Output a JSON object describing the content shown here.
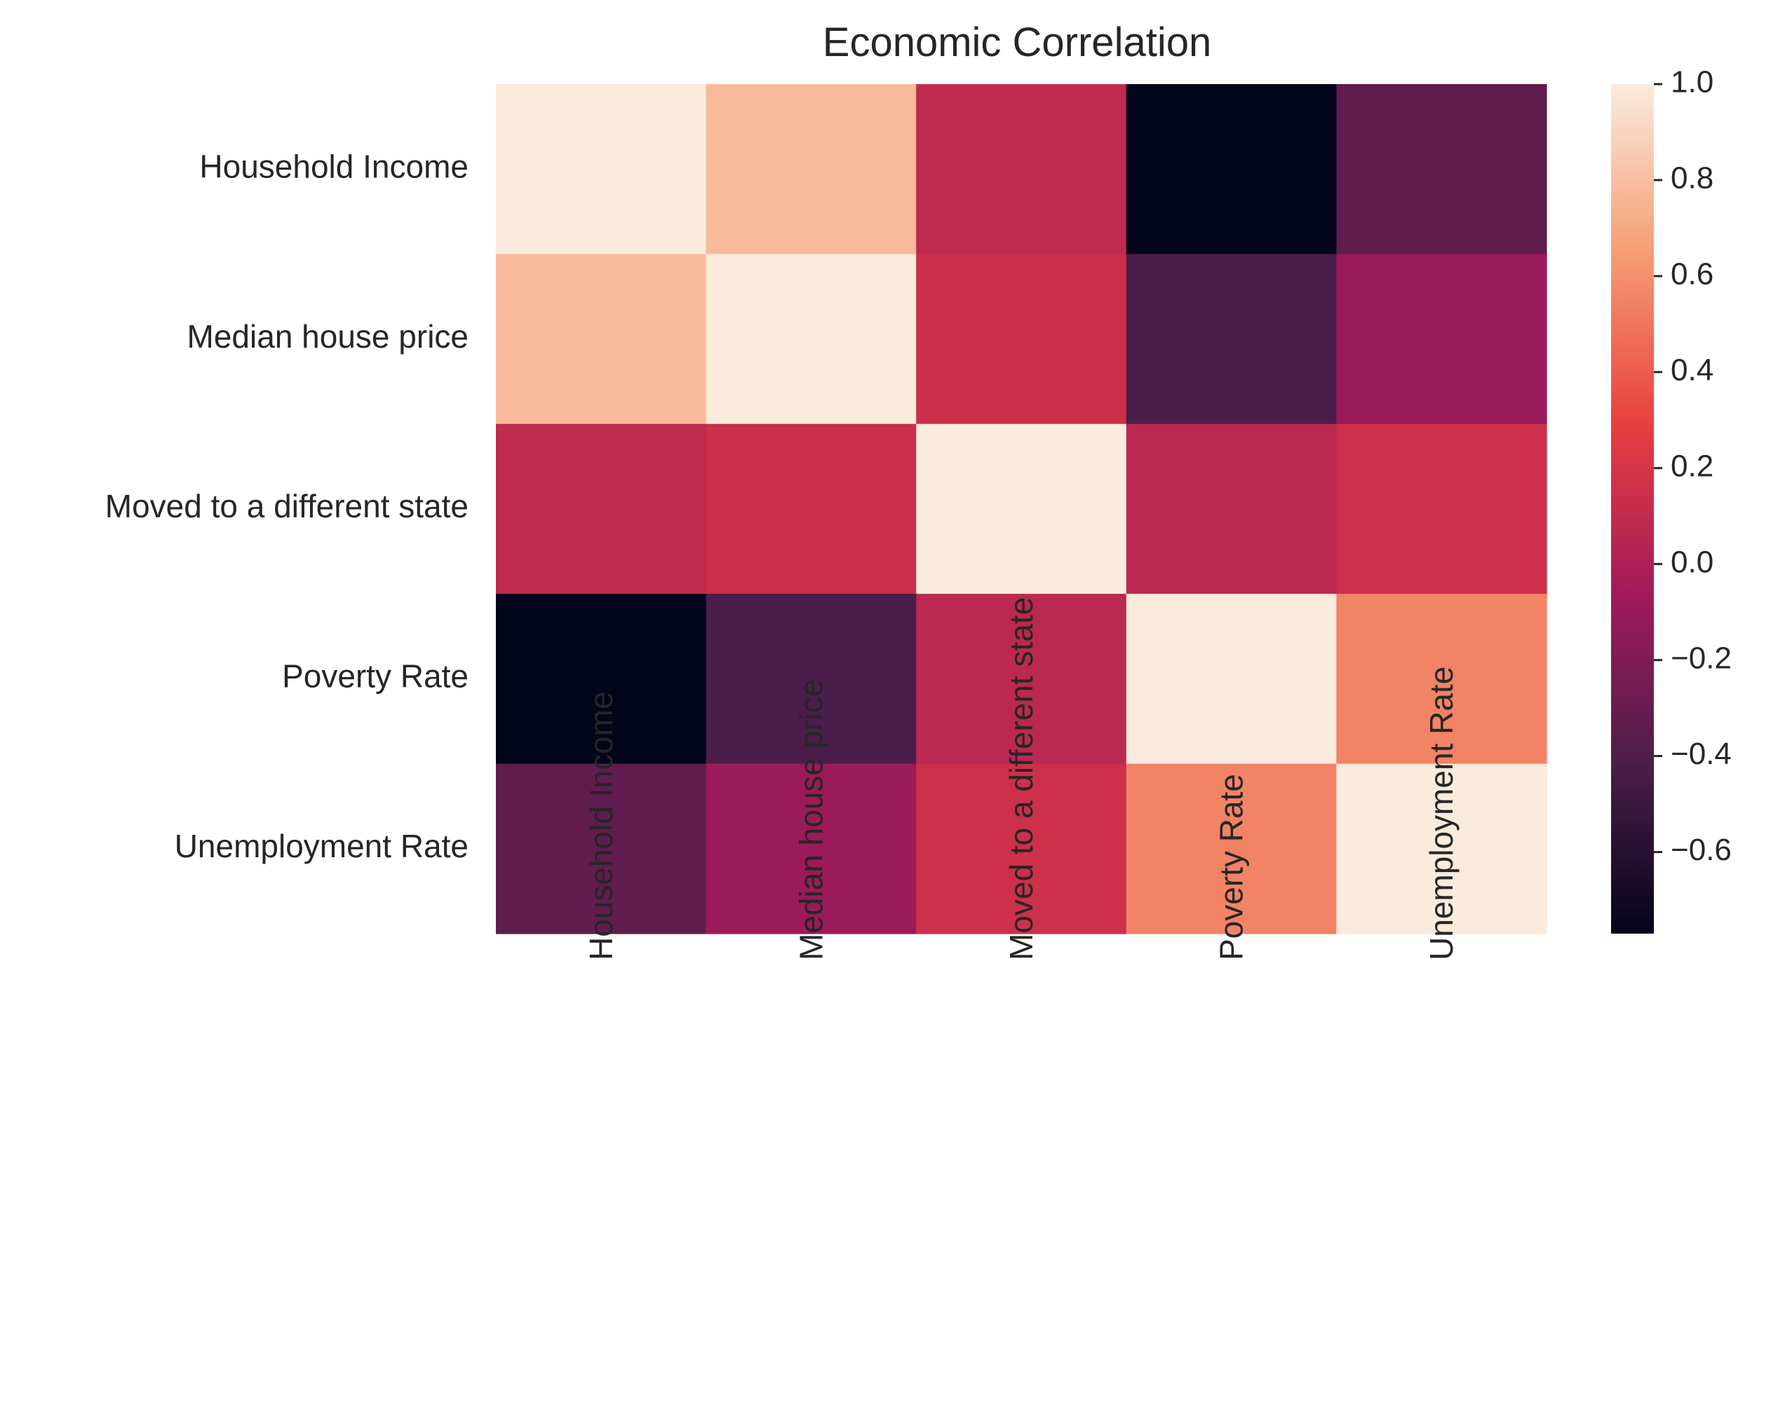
{
  "chart_data": {
    "type": "heatmap",
    "title": "Economic Correlation",
    "xlabel": "",
    "ylabel": "",
    "row_labels": [
      "Household Income",
      "Median house price",
      "Moved to a different state",
      "Poverty Rate",
      "Unemployment Rate"
    ],
    "col_labels": [
      "Household Income",
      "Median house price",
      "Moved to a different state",
      "Poverty Rate",
      "Unemployment Rate"
    ],
    "values": [
      [
        1.0,
        0.78,
        0.09,
        -0.77,
        -0.33
      ],
      [
        0.78,
        1.0,
        0.14,
        -0.42,
        -0.09
      ],
      [
        0.09,
        0.14,
        1.0,
        0.07,
        0.15
      ],
      [
        -0.77,
        -0.42,
        0.07,
        1.0,
        0.55
      ],
      [
        -0.33,
        -0.09,
        0.15,
        0.55,
        1.0
      ]
    ],
    "colorbar": {
      "min": -0.77,
      "max": 1.0,
      "ticks": [
        "1.0",
        "0.8",
        "0.6",
        "0.4",
        "0.2",
        "0.0",
        "−0.2",
        "−0.4",
        "−0.6"
      ],
      "tick_values": [
        1.0,
        0.8,
        0.6,
        0.4,
        0.2,
        0.0,
        -0.2,
        -0.4,
        -0.6
      ],
      "colormap": "rocket",
      "colormap_stops": [
        "#03051a",
        "#4c1d4b",
        "#a11a5b",
        "#e83f3f",
        "#f69c73",
        "#faebdd"
      ],
      "placement": "right"
    },
    "grid": false
  }
}
